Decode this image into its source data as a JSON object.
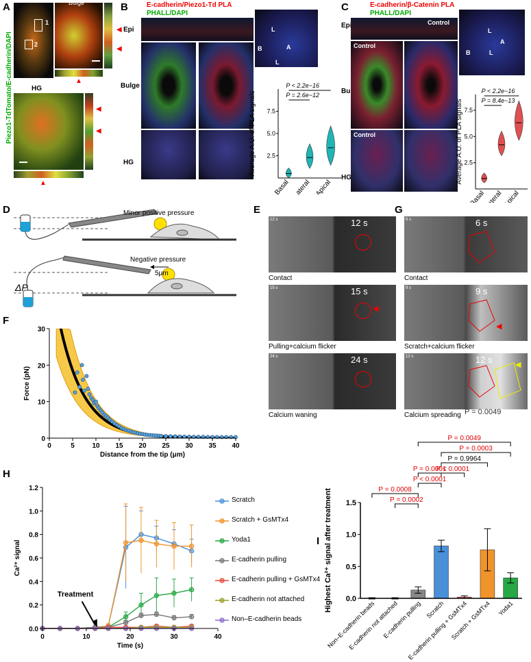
{
  "panels": {
    "A": {
      "letter": "A",
      "ylabel": "Piezo1-TdTomato/E-cadherin/DAPI",
      "zoom_bulge": "Bulge",
      "zoom_hg": "HG",
      "region1": "1",
      "region2": "2"
    },
    "B": {
      "letter": "B",
      "title": "E-cadherin/Piezo1-Td PLA",
      "subtitle": "PHALL/DAPI",
      "row_epi": "Epi",
      "row_bulge": "Bulge",
      "row_hg": "HG",
      "mark_b": "B",
      "mark_l1": "L",
      "mark_a": "A",
      "mark_l2": "L"
    },
    "C": {
      "letter": "C",
      "title": "E-cadherin/β-Catenin PLA",
      "subtitle": "PHALL/DAPI",
      "row_epi": "Epi",
      "row_bulge": "Bulge",
      "row_hg": "HG",
      "control1": "Control",
      "control2": "Control",
      "control3": "Control",
      "mark_b": "B",
      "mark_l1": "L",
      "mark_a": "A",
      "mark_l2": "L"
    },
    "D": {
      "letter": "D",
      "minor": "Minor positive pressure",
      "negative": "Negative pressure",
      "dist": "5μm",
      "dp": "ΔP"
    },
    "E": {
      "letter": "E",
      "t1": "12 s",
      "t2": "15 s",
      "t3": "24 s",
      "t1s": "12 s",
      "t2s": "15 s",
      "t3s": "24 s",
      "c1": "Contact",
      "c2": "Pulling+calcium flicker",
      "c3": "Calcium waning"
    },
    "G": {
      "letter": "G",
      "t1": "6 s",
      "t2": "9 s",
      "t3": "12 s",
      "t1s": "6 s",
      "t2s": "9 s",
      "t3s": "12 s",
      "c1": "Contact",
      "c2": "Scratch+calcium flicker",
      "c3": "Calcium spreading",
      "overlap": "P = 0.0049"
    },
    "F": {
      "letter": "F"
    },
    "H": {
      "letter": "H"
    },
    "I": {
      "letter": "I"
    }
  },
  "chart_data": [
    {
      "id": "B-violin",
      "type": "violin",
      "ylabel": "Average A.U. of PLA signals",
      "categories": [
        "Basal",
        "Lateral",
        "Apical"
      ],
      "ylim": [
        0,
        10
      ],
      "yticks": [
        "2.5",
        "5.0",
        "7.5"
      ],
      "median": [
        0.5,
        2.3,
        3.4
      ],
      "pvalues": [
        {
          "text": "P < 2.2e−16",
          "from": 0,
          "to": 2
        },
        {
          "text": "P = 2.6e−12",
          "from": 0,
          "to": 1
        }
      ],
      "color": "#1fb5b5"
    },
    {
      "id": "C-violin",
      "type": "violin",
      "ylabel": "Average A.U. of PLA signals",
      "categories": [
        "Basal",
        "Lateral",
        "Apical"
      ],
      "ylim": [
        0,
        9
      ],
      "yticks": [
        "2.5",
        "5.0",
        "7.5"
      ],
      "median": [
        1.0,
        4.2,
        6.3
      ],
      "pvalues": [
        {
          "text": "P < 2.2e−16",
          "from": 0,
          "to": 2
        },
        {
          "text": "P = 8.4e−13",
          "from": 0,
          "to": 1
        }
      ],
      "color": "#e05050"
    },
    {
      "id": "F-force",
      "type": "scatter",
      "xlabel": "Distance from the tip (μm)",
      "ylabel": "Force (pN)",
      "xlim": [
        0,
        40
      ],
      "ylim": [
        0,
        30
      ],
      "xticks": [
        "0",
        "5",
        "10",
        "15",
        "20",
        "25",
        "30",
        "35",
        "40"
      ],
      "yticks": [
        "0",
        "10",
        "20",
        "30"
      ],
      "fit": {
        "a": 48,
        "b": 0.19
      },
      "x": [
        5.5,
        6,
        6.5,
        7,
        7.2,
        7.5,
        8,
        8.3,
        8.6,
        9,
        9.3,
        9.6,
        10,
        10.3,
        10.6,
        11,
        11.4,
        11.8,
        12.2,
        12.6,
        13,
        13.5,
        14,
        14.5,
        15,
        15.5,
        16,
        16.5,
        17,
        17.5,
        18,
        18.5,
        19,
        19.5,
        20,
        20.5,
        21,
        21.5,
        22,
        22.5,
        23,
        23.5,
        24,
        25,
        26,
        27,
        28,
        29,
        30,
        31,
        32,
        33,
        34,
        35,
        36,
        37,
        38,
        39,
        40
      ],
      "y": [
        12.5,
        18,
        14,
        20,
        16,
        13,
        17,
        13.5,
        12,
        11,
        10.5,
        9.5,
        10,
        8.8,
        8.2,
        7.6,
        7,
        6.4,
        6,
        5.6,
        5,
        4.5,
        4,
        3.6,
        3.2,
        2.8,
        2.5,
        2.2,
        2,
        1.8,
        1.6,
        1.5,
        1.3,
        1.2,
        1.1,
        1,
        0.9,
        0.85,
        0.8,
        0.75,
        0.7,
        0.65,
        0.6,
        0.55,
        0.5,
        0.48,
        0.45,
        0.42,
        0.4,
        0.38,
        0.36,
        0.34,
        0.33,
        0.32,
        0.31,
        0.3,
        0.3,
        0.3,
        0.3
      ]
    },
    {
      "id": "H-timecourse",
      "type": "line",
      "xlabel": "Time (s)",
      "ylabel": "Ca²⁺ signal",
      "xlim": [
        0,
        40
      ],
      "ylim": [
        0,
        1.2
      ],
      "xticks": [
        "0",
        "10",
        "20",
        "30",
        "40"
      ],
      "yticks": [
        "0.0",
        "0.2",
        "0.4",
        "0.6",
        "0.8",
        "1.0",
        "1.2"
      ],
      "annotation": "Treatment",
      "x": [
        0,
        4,
        8,
        12,
        15,
        19,
        22.5,
        26,
        30,
        34
      ],
      "series": [
        {
          "name": "Scratch",
          "color": "#4a90d9",
          "values": [
            0,
            0,
            0,
            0.01,
            0.02,
            0.69,
            0.8,
            0.77,
            0.72,
            0.66
          ],
          "err": [
            0,
            0.01,
            0.01,
            0.01,
            0.02,
            0.35,
            0.2,
            0.1,
            0.12,
            0.1
          ]
        },
        {
          "name": "Scratch + GsMTx4",
          "color": "#f0932b",
          "values": [
            0,
            0,
            0,
            0.01,
            0.02,
            0.73,
            0.75,
            0.72,
            0.7,
            0.7
          ],
          "err": [
            0,
            0.01,
            0.01,
            0.01,
            0.02,
            0.33,
            0.28,
            0.2,
            0.2,
            0.18
          ]
        },
        {
          "name": "Yoda1",
          "color": "#27a844",
          "values": [
            0,
            0,
            0,
            0.01,
            0.01,
            0.1,
            0.2,
            0.28,
            0.3,
            0.33
          ],
          "err": [
            0,
            0.01,
            0.01,
            0.01,
            0.01,
            0.04,
            0.1,
            0.15,
            0.12,
            0.1
          ]
        },
        {
          "name": "E-cadherin pulling",
          "color": "#777777",
          "values": [
            0,
            0,
            0,
            0.01,
            0.01,
            0.05,
            0.11,
            0.12,
            0.09,
            0.1
          ],
          "err": [
            0,
            0,
            0,
            0.01,
            0.01,
            0.02,
            0.02,
            0.02,
            0.02,
            0.02
          ]
        },
        {
          "name": "E-cadherin pulling + GsMTx4",
          "color": "#e74c3c",
          "values": [
            0,
            0,
            0,
            0,
            0.01,
            0.01,
            0.01,
            0.02,
            0.01,
            0.02
          ],
          "err": [
            0,
            0,
            0,
            0,
            0,
            0,
            0,
            0.01,
            0,
            0.01
          ]
        },
        {
          "name": "E-cadherin not attached",
          "color": "#9aa02a",
          "values": [
            0,
            0,
            0,
            0,
            0,
            0,
            0.01,
            0.01,
            0.01,
            0.01
          ],
          "err": [
            0,
            0,
            0,
            0,
            0,
            0,
            0,
            0,
            0,
            0
          ]
        },
        {
          "name": "Non–E-cadherin beads",
          "color": "#8e6cc9",
          "values": [
            0,
            0,
            0,
            0,
            0,
            0,
            0,
            0,
            0,
            0
          ],
          "err": [
            0,
            0,
            0,
            0,
            0,
            0,
            0,
            0,
            0,
            0
          ]
        }
      ]
    },
    {
      "id": "I-bars",
      "type": "bar",
      "ylabel": "Highest Ca²⁺ signal after treatment",
      "ylim": [
        0,
        1.5
      ],
      "yticks": [
        "0.0",
        "0.5",
        "1.0",
        "1.5"
      ],
      "categories": [
        "Non–E-cadherin beads",
        "E-cadherin not attached",
        "E-cadherin pulling",
        "Scratch",
        "E-cadherin pulling + GsMTx4",
        "Scratch + GsMTx4",
        "Yoda1"
      ],
      "values": [
        0.0,
        0.0,
        0.13,
        0.82,
        0.02,
        0.76,
        0.32
      ],
      "err": [
        0.01,
        0.01,
        0.05,
        0.09,
        0.02,
        0.33,
        0.08
      ],
      "colors": [
        "#bbbbbb",
        "#bbbbbb",
        "#888888",
        "#4a90d9",
        "#e74c3c",
        "#f0932b",
        "#27a844"
      ],
      "comparisons": [
        {
          "text": "P = 0.0049",
          "from": 2,
          "to": 6,
          "level": 6,
          "color": "#e00000"
        },
        {
          "text": "P = 0.0003",
          "from": 3,
          "to": 6,
          "level": 5,
          "color": "#e00000"
        },
        {
          "text": "P = 0.9964",
          "from": 3,
          "to": 5,
          "level": 4,
          "color": "#000000"
        },
        {
          "text": "P = 0.0001",
          "from": 2,
          "to": 3,
          "level": 3,
          "color": "#e00000"
        },
        {
          "text": "P < 0.0001",
          "from": 3,
          "to": 4,
          "level": 3,
          "color": "#e00000"
        },
        {
          "text": "P < 0.0001",
          "from": 2,
          "to": 3,
          "level": 2,
          "color": "#e00000"
        },
        {
          "text": "P = 0.0008",
          "from": 0,
          "to": 2,
          "level": 1,
          "color": "#e00000"
        },
        {
          "text": "P = 0.0002",
          "from": 1,
          "to": 2,
          "level": 0,
          "color": "#e00000"
        }
      ]
    }
  ]
}
